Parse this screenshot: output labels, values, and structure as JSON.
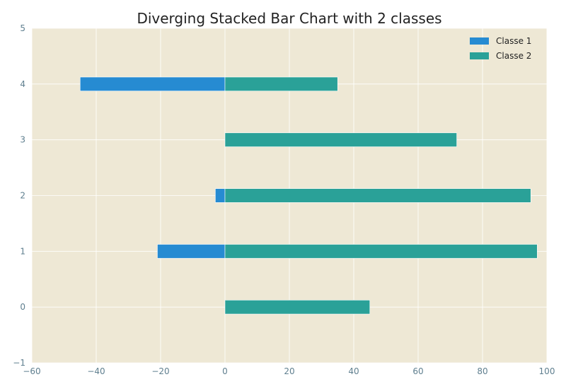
{
  "chart_data": {
    "type": "bar",
    "orientation": "horizontal",
    "stacking": "diverging",
    "title": "Diverging Stacked Bar Chart with 2 classes",
    "xlabel": "",
    "ylabel": "",
    "xlim": [
      -60,
      100
    ],
    "ylim": [
      -1,
      5
    ],
    "xticks": [
      "−60",
      "−40",
      "−20",
      "0",
      "20",
      "40",
      "60",
      "80",
      "100"
    ],
    "yticks": [
      "−1",
      "0",
      "1",
      "2",
      "3",
      "4",
      "5"
    ],
    "categories": [
      0,
      1,
      2,
      3,
      4
    ],
    "series": [
      {
        "name": "Classe 1",
        "color": "#268bd2",
        "values": [
          0,
          -21,
          -3,
          0,
          -45
        ]
      },
      {
        "name": "Classe 2",
        "color": "#2aa198",
        "values": [
          45,
          97,
          95,
          72,
          35
        ]
      }
    ],
    "grid": true,
    "legend_position": "upper-right",
    "background": "#eee8d5",
    "grid_color": "#ffffff"
  }
}
